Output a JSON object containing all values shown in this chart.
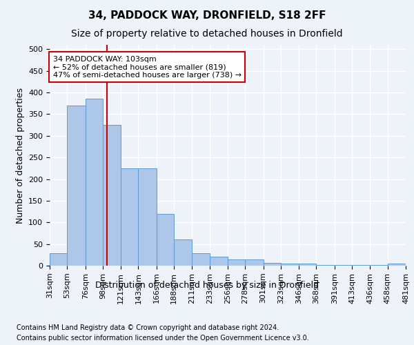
{
  "title1": "34, PADDOCK WAY, DRONFIELD, S18 2FF",
  "title2": "Size of property relative to detached houses in Dronfield",
  "xlabel": "Distribution of detached houses by size in Dronfield",
  "ylabel": "Number of detached properties",
  "footnote1": "Contains HM Land Registry data © Crown copyright and database right 2024.",
  "footnote2": "Contains public sector information licensed under the Open Government Licence v3.0.",
  "bin_labels": [
    "31sqm",
    "53sqm",
    "76sqm",
    "98sqm",
    "121sqm",
    "143sqm",
    "166sqm",
    "188sqm",
    "211sqm",
    "233sqm",
    "256sqm",
    "278sqm",
    "301sqm",
    "323sqm",
    "346sqm",
    "368sqm",
    "391sqm",
    "413sqm",
    "436sqm",
    "458sqm",
    "481sqm"
  ],
  "bin_edges": [
    31,
    53,
    76,
    98,
    121,
    143,
    166,
    188,
    211,
    233,
    256,
    278,
    301,
    323,
    346,
    368,
    391,
    413,
    436,
    458,
    481
  ],
  "values": [
    28,
    370,
    385,
    325,
    225,
    225,
    120,
    60,
    28,
    20,
    15,
    15,
    6,
    4,
    4,
    2,
    2,
    2,
    2,
    5
  ],
  "bar_color": "#aec6e8",
  "bar_edge_color": "#5b9bd5",
  "property_value": 103,
  "property_line_color": "#cc0000",
  "annotation_line1": "34 PADDOCK WAY: 103sqm",
  "annotation_line2": "← 52% of detached houses are smaller (819)",
  "annotation_line3": "47% of semi-detached houses are larger (738) →",
  "annotation_box_color": "white",
  "annotation_box_edge_color": "#cc0000",
  "ylim": [
    0,
    510
  ],
  "yticks": [
    0,
    50,
    100,
    150,
    200,
    250,
    300,
    350,
    400,
    450,
    500
  ],
  "background_color": "#eef2f9",
  "plot_bg_color": "#eef2f9",
  "grid_color": "white",
  "title1_fontsize": 11,
  "title2_fontsize": 10,
  "xlabel_fontsize": 9,
  "ylabel_fontsize": 9,
  "tick_fontsize": 8,
  "annotation_fontsize": 8,
  "footnote_fontsize": 7
}
